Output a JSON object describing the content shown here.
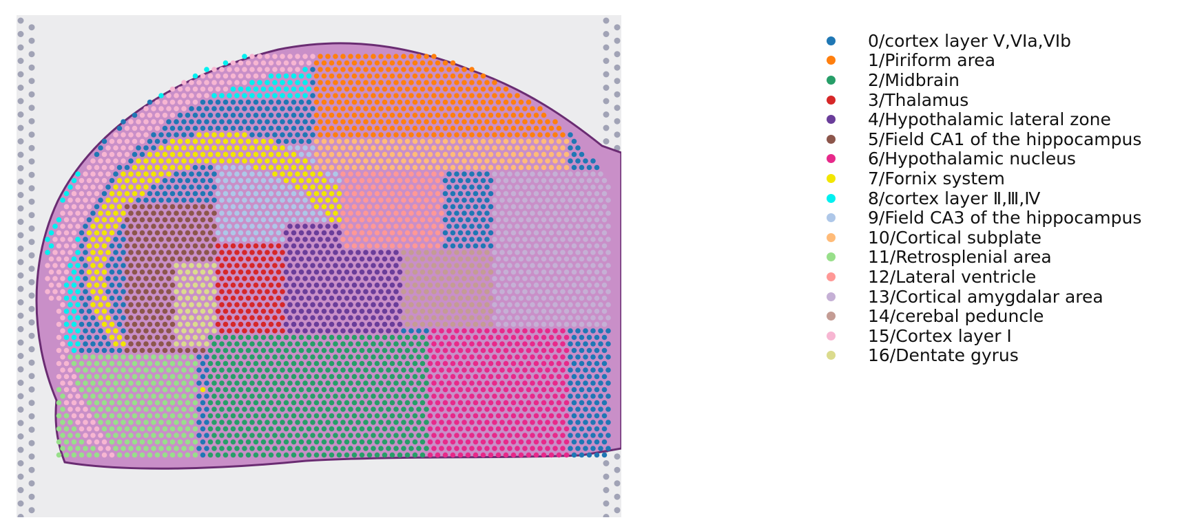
{
  "clusters": [
    {
      "label": "0/cortex layer V,VIa,VIb",
      "color": "#1f77b4"
    },
    {
      "label": "1/Piriform area",
      "color": "#ff7f0e"
    },
    {
      "label": "2/Midbrain",
      "color": "#279e68"
    },
    {
      "label": "3/Thalamus",
      "color": "#d62728"
    },
    {
      "label": "4/Hypothalamic lateral zone",
      "color": "#6a3d9a"
    },
    {
      "label": "5/Field CA1 of the hippocampus",
      "color": "#8c564b"
    },
    {
      "label": "6/Hypothalamic nucleus",
      "color": "#e7298a"
    },
    {
      "label": "7/Fornix system",
      "color": "#f2e600"
    },
    {
      "label": "8/cortex layer Ⅱ,Ⅲ,Ⅳ",
      "color": "#00f0f0"
    },
    {
      "label": "9/Field CA3 of the hippocampus",
      "color": "#aec7e8"
    },
    {
      "label": "10/Cortical subplate",
      "color": "#ffbb78"
    },
    {
      "label": "11/Retrosplenial area",
      "color": "#98df8a"
    },
    {
      "label": "12/Lateral ventricle",
      "color": "#ff9896"
    },
    {
      "label": "13/Cortical amygdalar area",
      "color": "#c5b0d5"
    },
    {
      "label": "14/cerebal peduncle",
      "color": "#c49c94"
    },
    {
      "label": "15/Cortex layer I",
      "color": "#f7b6d2"
    },
    {
      "label": "16/Dentate gyrus",
      "color": "#dbdb8d"
    }
  ],
  "tissue_colors": {
    "background": "#ececee",
    "tissue_fill": "#c98fc8",
    "tissue_edge": "#6a2c72",
    "frame_spot": "#8f91a8"
  }
}
